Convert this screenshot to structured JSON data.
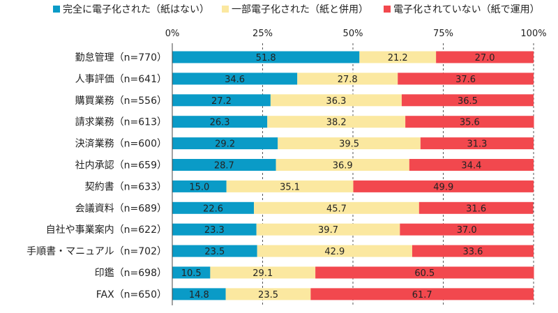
{
  "colors": {
    "full": "#0a9bc7",
    "partial": "#fbe8a0",
    "none": "#f2484e",
    "axis": "#444444",
    "grid": "#555555"
  },
  "chart_data": {
    "type": "bar",
    "orientation": "horizontal",
    "stacked": true,
    "percent_stacked": true,
    "title": "",
    "xlabel": "",
    "ylabel": "",
    "xlim": [
      0,
      100
    ],
    "x_ticks": [
      "0%",
      "25%",
      "50%",
      "75%",
      "100%"
    ],
    "grid": "vertical dashed",
    "legend_position": "top",
    "categories": [
      "勤怠管理（n=770）",
      "人事評価（n=641）",
      "購買業務（n=556）",
      "請求業務（n=613）",
      "決済業務（n=600）",
      "社内承認（n=659）",
      "契約書（n=633）",
      "会議資料（n=689）",
      "自社や事業案内（n=622）",
      "手順書・マニュアル（n=702）",
      "印鑑（n=698）",
      "FAX（n=650）"
    ],
    "series": [
      {
        "name": "完全に電子化された（紙はない）",
        "values": [
          51.8,
          34.6,
          27.2,
          26.3,
          29.2,
          28.7,
          15.0,
          22.6,
          23.3,
          23.5,
          10.5,
          14.8
        ]
      },
      {
        "name": "一部電子化された（紙と併用）",
        "values": [
          21.2,
          27.8,
          36.3,
          38.2,
          39.5,
          36.9,
          35.1,
          45.7,
          39.7,
          42.9,
          29.1,
          23.5
        ]
      },
      {
        "name": "電子化されていない（紙で運用）",
        "values": [
          27.0,
          37.6,
          36.5,
          35.6,
          31.3,
          34.4,
          49.9,
          31.6,
          37.0,
          33.6,
          60.5,
          61.7
        ]
      }
    ]
  }
}
